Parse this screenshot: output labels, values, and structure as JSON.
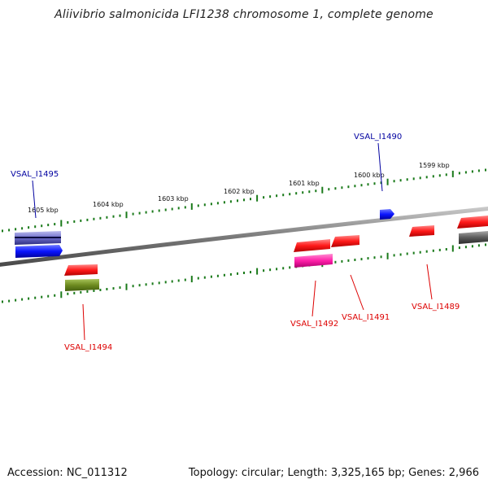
{
  "title": "Aliivibrio salmonicida LFI1238 chromosome 1, complete genome",
  "footer": {
    "accession": "Accession: NC_011312",
    "topology": "Topology: circular; Length: 3,325,165 bp; Genes: 2,966"
  },
  "ruler": {
    "tick_labels": [
      "1605 kbp",
      "1604 kbp",
      "1603 kbp",
      "1602 kbp",
      "1601 kbp",
      "1600 kbp",
      "1599 kbp"
    ]
  },
  "gene_labels": [
    {
      "name": "VSAL_I1495",
      "color": "#0000a0"
    },
    {
      "name": "VSAL_I1490",
      "color": "#0000a0"
    },
    {
      "name": "VSAL_I1494",
      "color": "#dd0000"
    },
    {
      "name": "VSAL_I1492",
      "color": "#dd0000"
    },
    {
      "name": "VSAL_I1491",
      "color": "#dd0000"
    },
    {
      "name": "VSAL_I1489",
      "color": "#dd0000"
    }
  ],
  "colors": {
    "ruler_ticks": "#1a7a1a",
    "backbone": "#808080",
    "forward_label": "#0000a0",
    "reverse_label": "#dd0000",
    "gene_red": "#ff1a1a",
    "gene_blue": "#0a14ff",
    "gene_pink": "#ff1fa8",
    "gene_olive": "#6e8b20",
    "gene_slate": "#6c6cc8",
    "gene_gray": "#5c5c5c"
  }
}
